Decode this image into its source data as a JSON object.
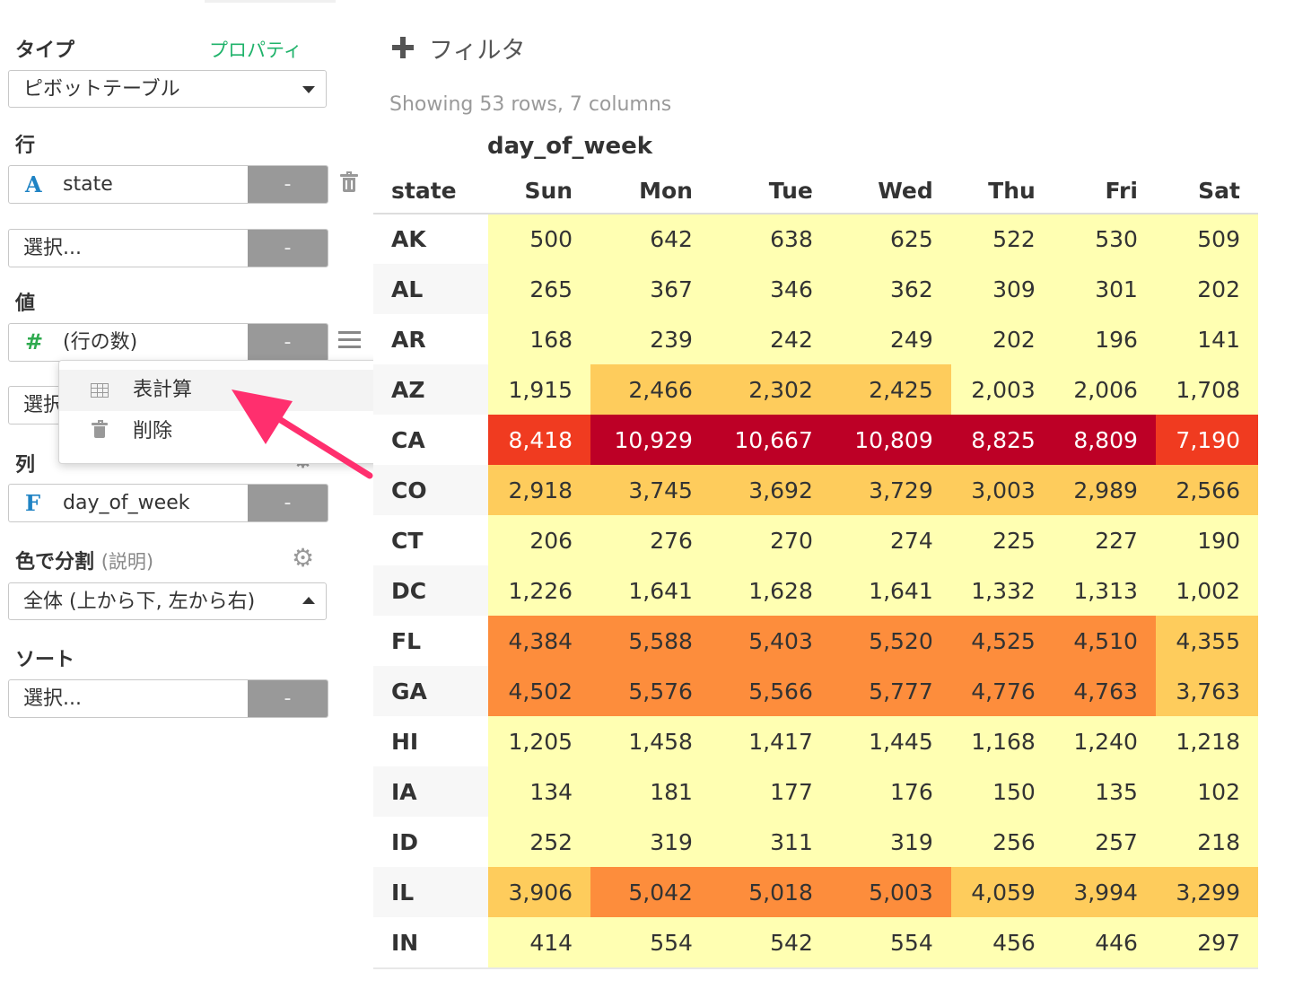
{
  "panel": {
    "type_label": "タイプ",
    "property_link": "プロパティ",
    "type_select": "ピボットテーブル",
    "rows_label": "行",
    "row_field_icon": "A",
    "row_field": "state",
    "row_placeholder": "選択...",
    "values_label": "値",
    "value_field_icon": "#",
    "value_field": "(行の数)",
    "value_placeholder": "選択...",
    "columns_label": "列",
    "column_field_icon": "F",
    "column_field": "day_of_week",
    "color_split_label": "色で分割",
    "color_split_help": "(説明)",
    "color_split_select": "全体 (上から下,  左から右)",
    "sort_label": "ソート",
    "sort_placeholder": "選択...",
    "remove_button": "-"
  },
  "dropdown_menu": {
    "items": [
      {
        "label": "表計算",
        "icon": "table-icon"
      },
      {
        "label": "削除",
        "icon": "trash-icon"
      }
    ]
  },
  "main": {
    "filter_label": "フィルタ",
    "showing": "Showing 53 rows, 7 columns",
    "column_field_header": "day_of_week",
    "row_header": "state",
    "columns": [
      "Sun",
      "Mon",
      "Tue",
      "Wed",
      "Thu",
      "Fri",
      "Sat"
    ],
    "rows": [
      {
        "state": "AK",
        "values": [
          "500",
          "642",
          "638",
          "625",
          "522",
          "530",
          "509"
        ],
        "levels": [
          1,
          1,
          1,
          1,
          1,
          1,
          1
        ]
      },
      {
        "state": "AL",
        "values": [
          "265",
          "367",
          "346",
          "362",
          "309",
          "301",
          "202"
        ],
        "levels": [
          1,
          1,
          1,
          1,
          1,
          1,
          1
        ]
      },
      {
        "state": "AR",
        "values": [
          "168",
          "239",
          "242",
          "249",
          "202",
          "196",
          "141"
        ],
        "levels": [
          1,
          1,
          1,
          1,
          1,
          1,
          1
        ]
      },
      {
        "state": "AZ",
        "values": [
          "1,915",
          "2,466",
          "2,302",
          "2,425",
          "2,003",
          "2,006",
          "1,708"
        ],
        "levels": [
          1,
          2,
          2,
          2,
          1,
          1,
          1
        ]
      },
      {
        "state": "CA",
        "values": [
          "8,418",
          "10,929",
          "10,667",
          "10,809",
          "8,825",
          "8,809",
          "7,190"
        ],
        "levels": [
          4,
          5,
          5,
          5,
          5,
          5,
          4
        ]
      },
      {
        "state": "CO",
        "values": [
          "2,918",
          "3,745",
          "3,692",
          "3,729",
          "3,003",
          "2,989",
          "2,566"
        ],
        "levels": [
          2,
          2,
          2,
          2,
          2,
          2,
          2
        ]
      },
      {
        "state": "CT",
        "values": [
          "206",
          "276",
          "270",
          "274",
          "225",
          "227",
          "190"
        ],
        "levels": [
          1,
          1,
          1,
          1,
          1,
          1,
          1
        ]
      },
      {
        "state": "DC",
        "values": [
          "1,226",
          "1,641",
          "1,628",
          "1,641",
          "1,332",
          "1,313",
          "1,002"
        ],
        "levels": [
          1,
          1,
          1,
          1,
          1,
          1,
          1
        ]
      },
      {
        "state": "FL",
        "values": [
          "4,384",
          "5,588",
          "5,403",
          "5,520",
          "4,525",
          "4,510",
          "4,355"
        ],
        "levels": [
          3,
          3,
          3,
          3,
          3,
          3,
          2
        ]
      },
      {
        "state": "GA",
        "values": [
          "4,502",
          "5,576",
          "5,566",
          "5,777",
          "4,776",
          "4,763",
          "3,763"
        ],
        "levels": [
          3,
          3,
          3,
          3,
          3,
          3,
          2
        ]
      },
      {
        "state": "HI",
        "values": [
          "1,205",
          "1,458",
          "1,417",
          "1,445",
          "1,168",
          "1,240",
          "1,218"
        ],
        "levels": [
          1,
          1,
          1,
          1,
          1,
          1,
          1
        ]
      },
      {
        "state": "IA",
        "values": [
          "134",
          "181",
          "177",
          "176",
          "150",
          "135",
          "102"
        ],
        "levels": [
          1,
          1,
          1,
          1,
          1,
          1,
          1
        ]
      },
      {
        "state": "ID",
        "values": [
          "252",
          "319",
          "311",
          "319",
          "256",
          "257",
          "218"
        ],
        "levels": [
          1,
          1,
          1,
          1,
          1,
          1,
          1
        ]
      },
      {
        "state": "IL",
        "values": [
          "3,906",
          "5,042",
          "5,018",
          "5,003",
          "4,059",
          "3,994",
          "3,299"
        ],
        "levels": [
          2,
          3,
          3,
          3,
          2,
          2,
          2
        ]
      },
      {
        "state": "IN",
        "values": [
          "414",
          "554",
          "542",
          "554",
          "456",
          "446",
          "297"
        ],
        "levels": [
          1,
          1,
          1,
          1,
          1,
          1,
          1
        ]
      }
    ]
  },
  "colors": {
    "scale": [
      "#ffffb2",
      "#fecc5c",
      "#fd8d3c",
      "#f03b20",
      "#bd0026"
    ],
    "accent": "#20b36b",
    "annotation_arrow": "#ff2f6e"
  }
}
